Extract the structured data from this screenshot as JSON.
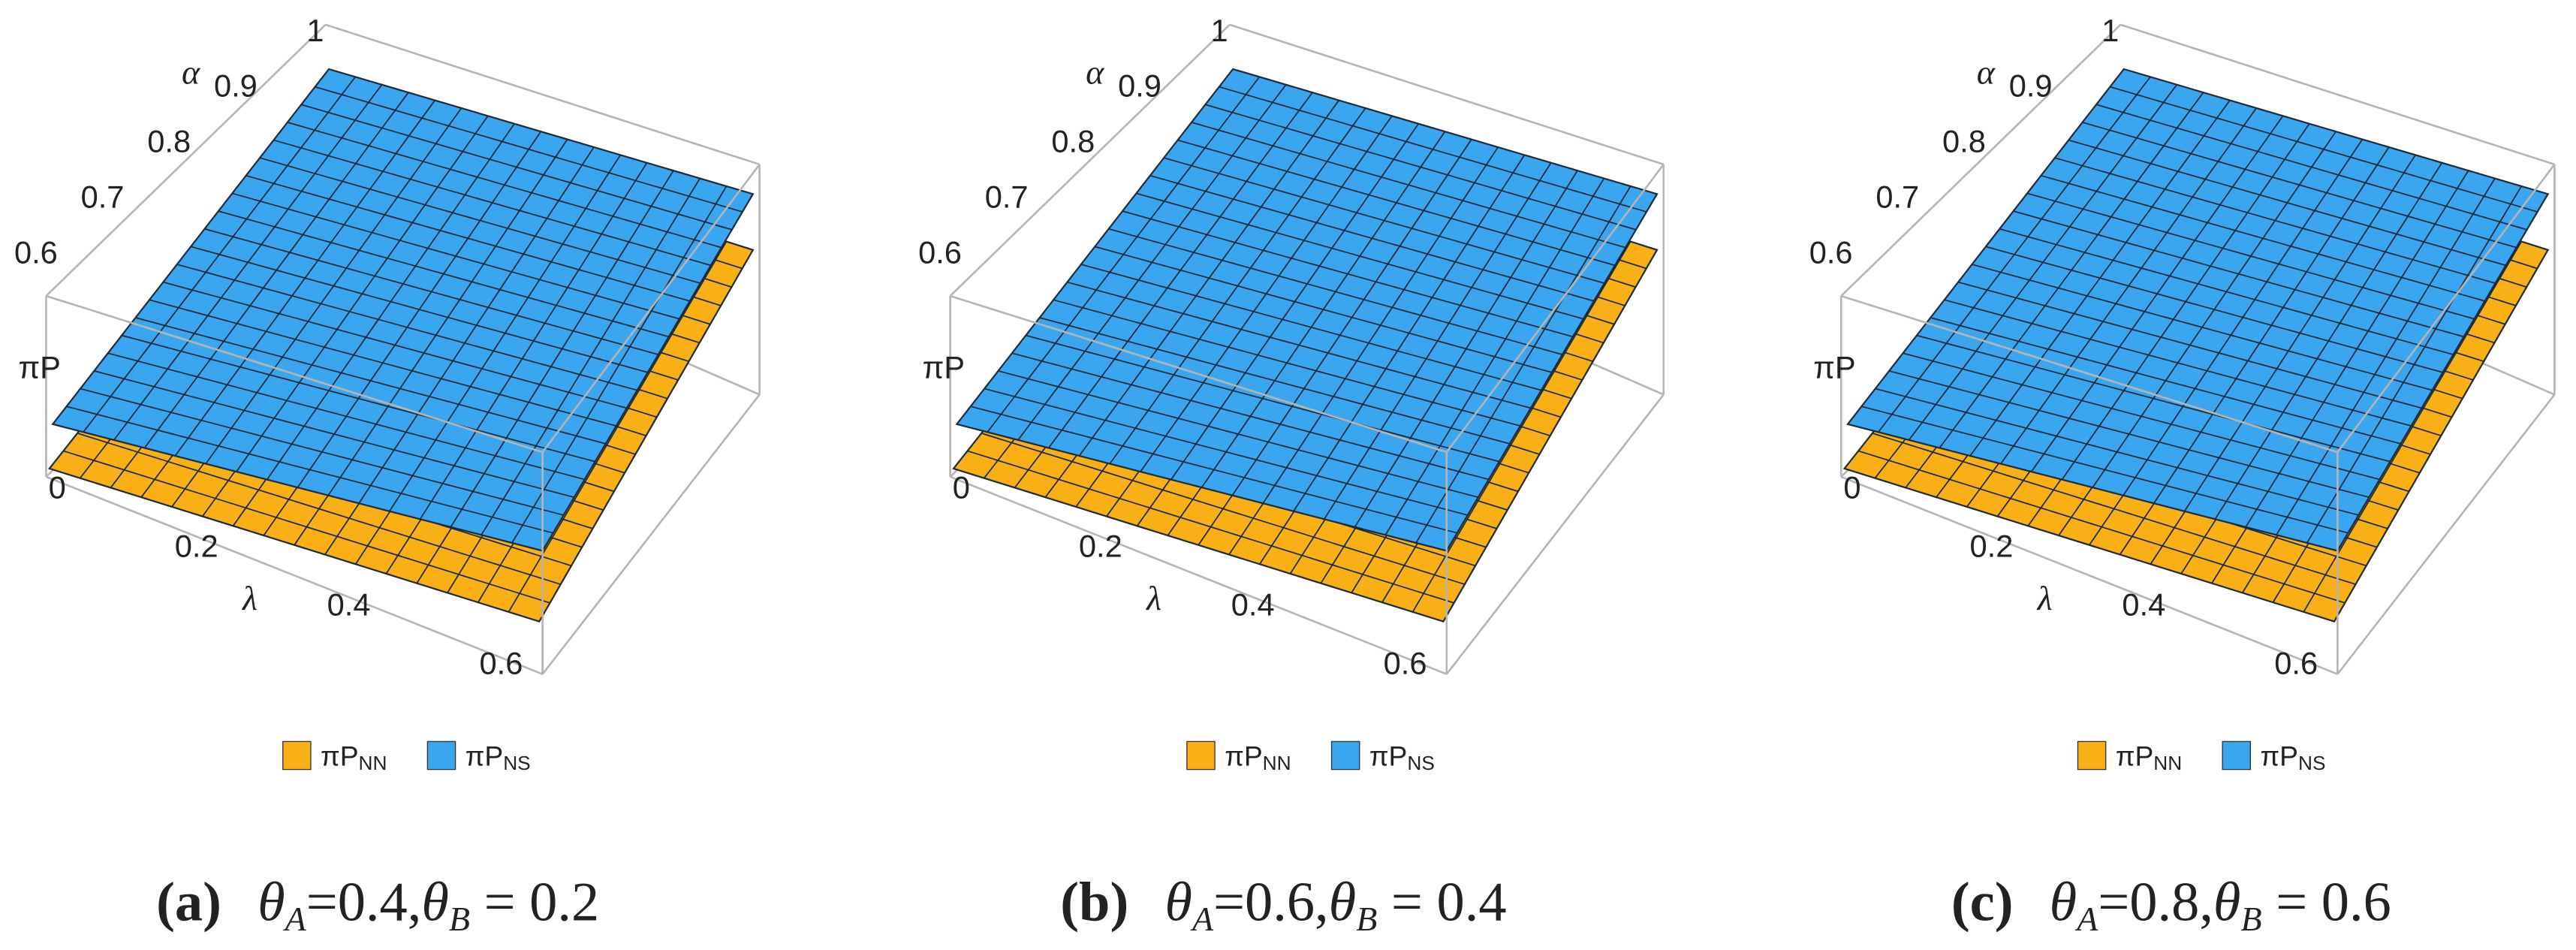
{
  "chart_data": [
    {
      "type": "surface3d",
      "xlabel": "λ",
      "ylabel": "α",
      "zlabel": "πP",
      "xlim": [
        0,
        0.6
      ],
      "xticks": [
        0,
        0.2,
        0.4,
        0.6
      ],
      "ylim": [
        0.6,
        1
      ],
      "yticks": [
        0.6,
        0.7,
        0.8,
        0.9,
        1
      ],
      "series": [
        {
          "name": "πP",
          "name_subscript": "NN",
          "color": "#f9b016"
        },
        {
          "name": "πP",
          "name_subscript": "NS",
          "color": "#3aa6f0"
        }
      ],
      "caption_label": "(a)",
      "caption_parts": [
        "θ",
        "A",
        "=0.4,",
        "θ",
        "B",
        " = 0.2"
      ]
    },
    {
      "type": "surface3d",
      "xlabel": "λ",
      "ylabel": "α",
      "zlabel": "πP",
      "xlim": [
        0,
        0.6
      ],
      "xticks": [
        0,
        0.2,
        0.4,
        0.6
      ],
      "ylim": [
        0.6,
        1
      ],
      "yticks": [
        0.6,
        0.7,
        0.8,
        0.9,
        1
      ],
      "series": [
        {
          "name": "πP",
          "name_subscript": "NN",
          "color": "#f9b016"
        },
        {
          "name": "πP",
          "name_subscript": "NS",
          "color": "#3aa6f0"
        }
      ],
      "caption_label": "(b)",
      "caption_parts": [
        "θ",
        "A",
        "=0.6,",
        "θ",
        "B",
        " = 0.4"
      ]
    },
    {
      "type": "surface3d",
      "xlabel": "λ",
      "ylabel": "α",
      "zlabel": "πP",
      "xlim": [
        0,
        0.6
      ],
      "xticks": [
        0,
        0.2,
        0.4,
        0.6
      ],
      "ylim": [
        0.6,
        1
      ],
      "yticks": [
        0.6,
        0.7,
        0.8,
        0.9,
        1
      ],
      "series": [
        {
          "name": "πP",
          "name_subscript": "NN",
          "color": "#f9b016"
        },
        {
          "name": "πP",
          "name_subscript": "NS",
          "color": "#3aa6f0"
        }
      ],
      "caption_label": "(c)",
      "caption_parts": [
        "θ",
        "A",
        "=0.8,",
        "θ",
        "B",
        " = 0.6"
      ]
    }
  ]
}
